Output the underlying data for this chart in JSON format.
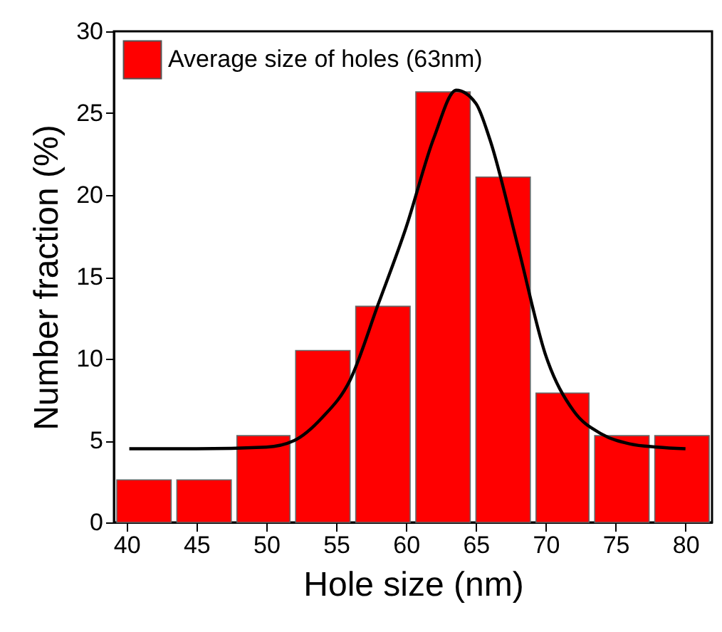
{
  "chart_data": {
    "type": "histogram",
    "xlabel": "Hole size (nm)",
    "ylabel": "Number fraction (%)",
    "bins": [
      39.1,
      43.4,
      47.7,
      51.9,
      56.2,
      60.5,
      64.8,
      69.1,
      73.3,
      77.6,
      81.9
    ],
    "series": [
      {
        "name": "Average size of holes (63nm)",
        "color": "#ff0000",
        "values": [
          2.6,
          2.6,
          5.3,
          10.5,
          13.2,
          26.3,
          21.1,
          7.9,
          5.3,
          5.3
        ]
      },
      {
        "type": "line",
        "color": "#000000",
        "x": [
          40.2,
          45,
          50,
          52,
          54,
          56,
          58,
          60,
          62,
          63.6,
          65,
          66,
          68,
          70,
          72,
          74,
          76,
          78,
          80
        ],
        "values": [
          4.5,
          4.5,
          4.6,
          5.0,
          6.4,
          8.7,
          13.3,
          18.0,
          23.5,
          26.4,
          25.6,
          23.4,
          16.9,
          10.2,
          6.8,
          5.4,
          4.8,
          4.6,
          4.5
        ]
      }
    ],
    "xlim": [
      39.1,
      81.9
    ],
    "xticks": [
      40,
      45,
      50,
      55,
      60,
      65,
      70,
      75,
      80
    ],
    "ylim": [
      0,
      30
    ],
    "yticks": [
      0,
      5,
      10,
      15,
      20,
      25,
      30
    ],
    "legend": "top left",
    "grid": false
  }
}
